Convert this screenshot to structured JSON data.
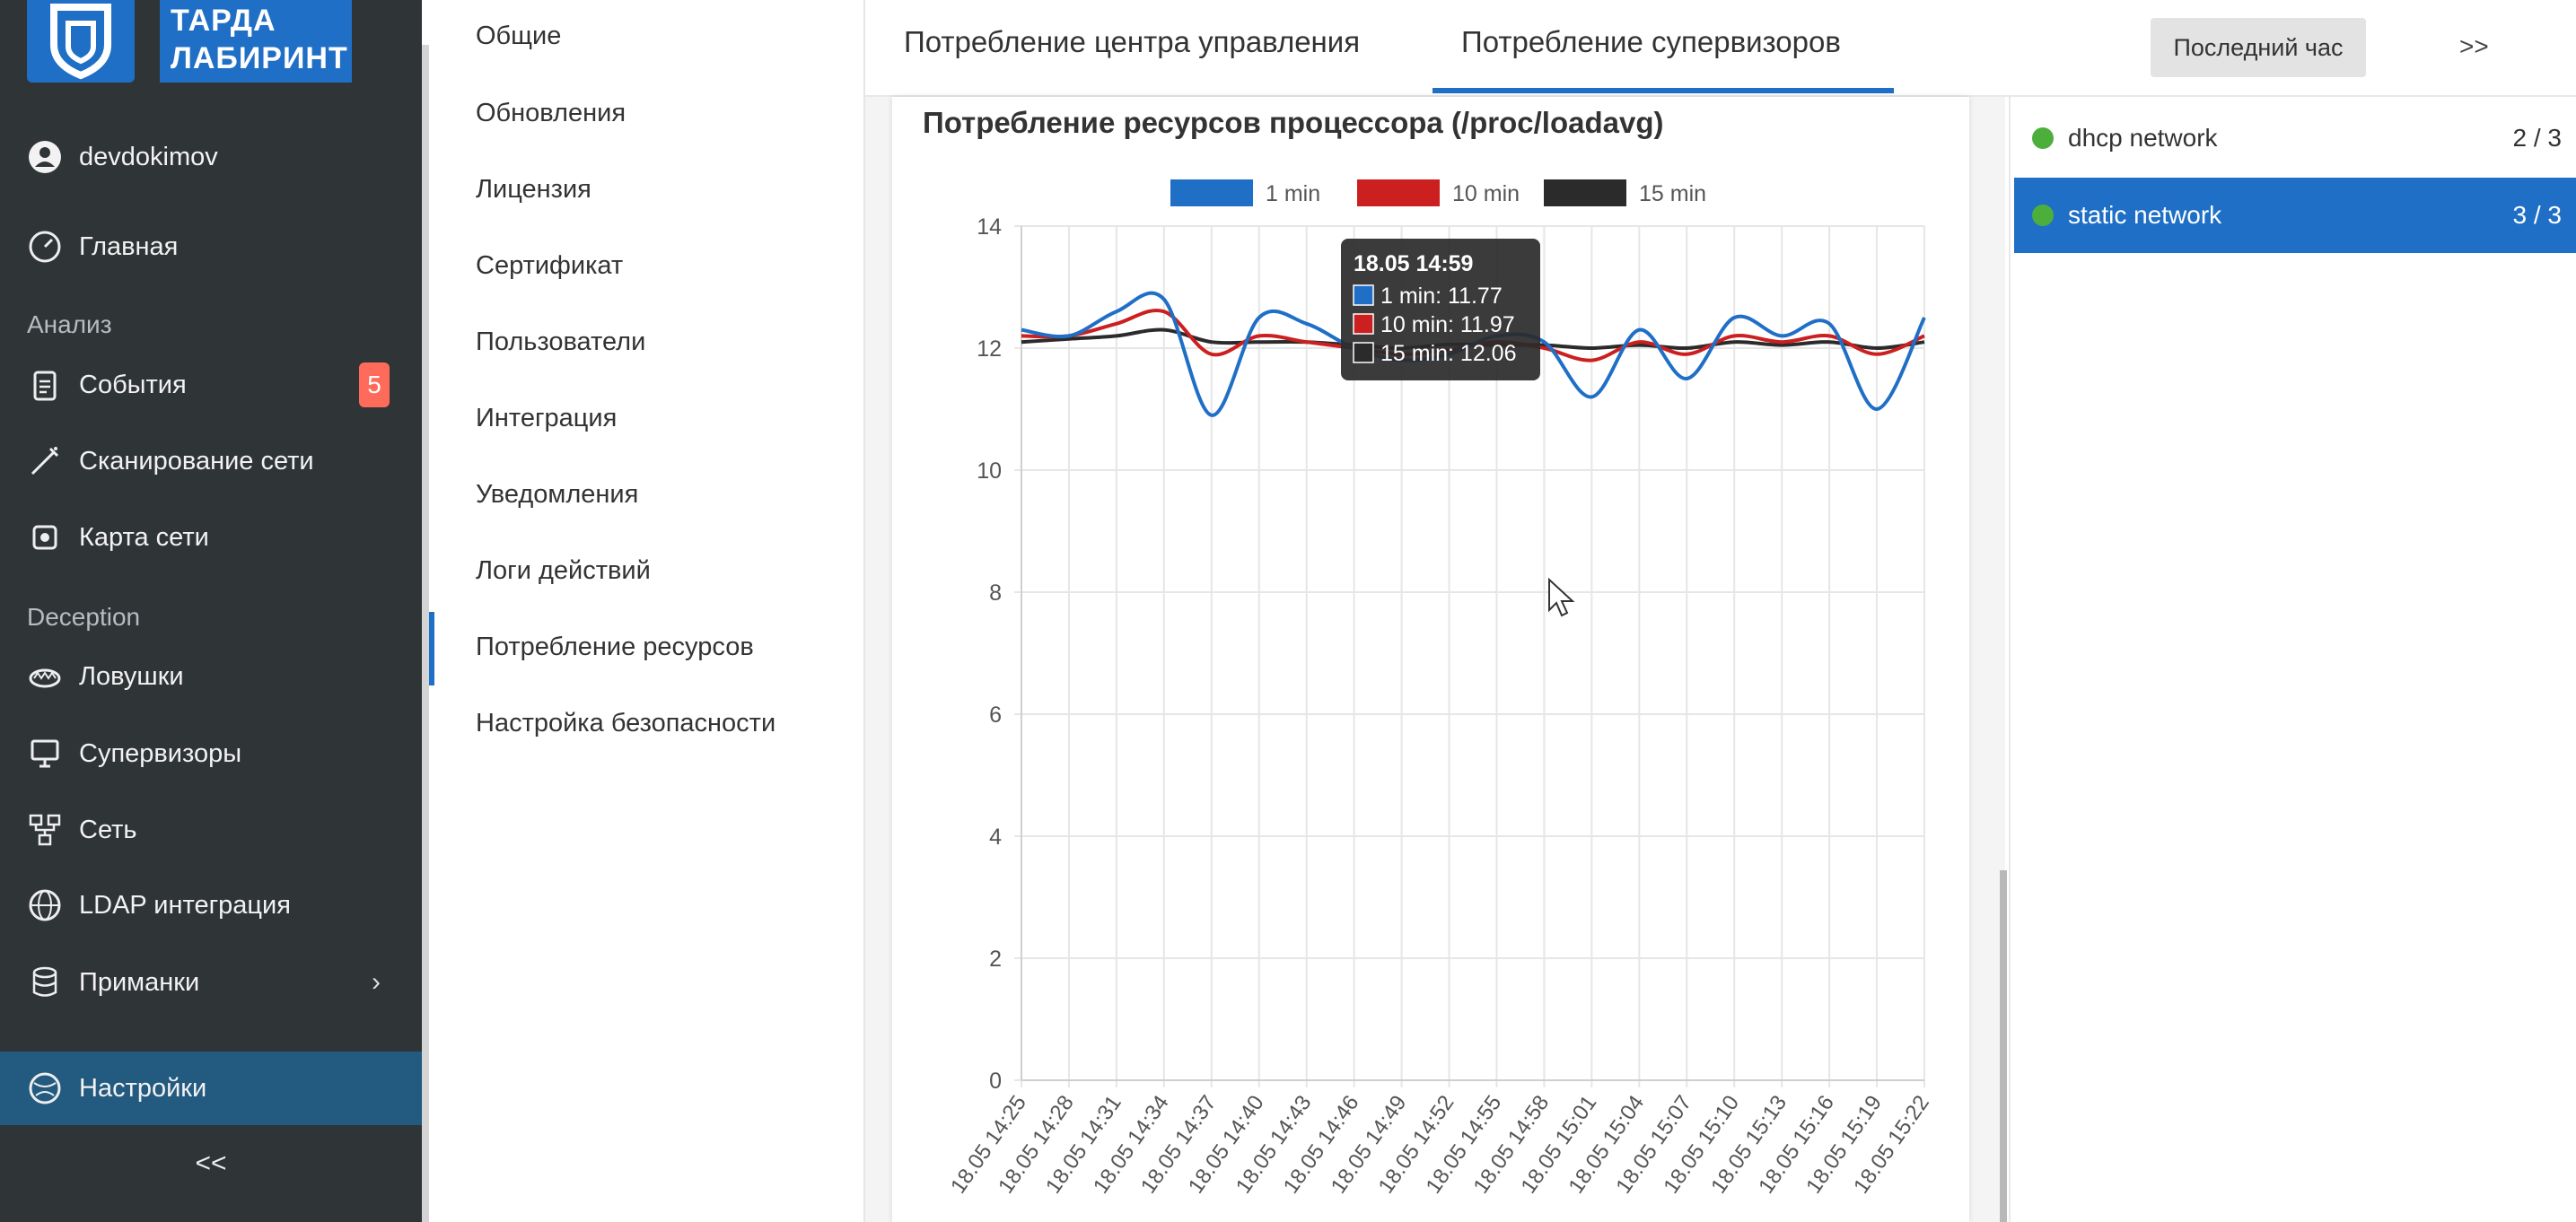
{
  "app": {
    "logo_text": "ТАРДА ЛАБИРИНТ",
    "user": "devdokimov"
  },
  "sidebar": {
    "home": "Главная",
    "section_analysis": "Анализ",
    "events": "События",
    "events_badge": "5",
    "scan": "Сканирование сети",
    "map": "Карта сети",
    "section_deception": "Deception",
    "traps": "Ловушки",
    "supervisors": "Супервизоры",
    "network": "Сеть",
    "ldap": "LDAP интеграция",
    "baits": "Приманки",
    "settings": "Настройки",
    "collapse": "<<"
  },
  "settings_menu": [
    "Общие",
    "Обновления",
    "Лицензия",
    "Сертификат",
    "Пользователи",
    "Интеграция",
    "Уведомления",
    "Логи действий",
    "Потребление ресурсов",
    "Настройка безопасности"
  ],
  "tabs": {
    "center": "Потребление центра управления",
    "supervisors": "Потребление супервизоров",
    "period": "Последний час",
    "more": ">>"
  },
  "supervisors_list": [
    {
      "name": "dhcp network",
      "count": "2 / 3"
    },
    {
      "name": "static network",
      "count": "3 / 3"
    }
  ],
  "colors": {
    "accent": "#1f6fc6",
    "series_1": "#1f6fc6",
    "series_10": "#cc1f1f",
    "series_15": "#2b2b2b",
    "ok": "#4caf3c",
    "badge": "#ff6b5a"
  },
  "chart_data": {
    "type": "line",
    "title": "Потребление ресурсов процессора (/proc/loadavg)",
    "ylim": [
      0,
      14
    ],
    "yticks": [
      0,
      2,
      4,
      6,
      8,
      10,
      12,
      14
    ],
    "x": [
      "18.05 14:25",
      "18.05 14:28",
      "18.05 14:31",
      "18.05 14:34",
      "18.05 14:37",
      "18.05 14:40",
      "18.05 14:43",
      "18.05 14:46",
      "18.05 14:49",
      "18.05 14:52",
      "18.05 14:55",
      "18.05 14:58",
      "18.05 15:01",
      "18.05 15:04",
      "18.05 15:07",
      "18.05 15:10",
      "18.05 15:13",
      "18.05 15:16",
      "18.05 15:19",
      "18.05 15:22"
    ],
    "grid": true,
    "legend": "top",
    "series": [
      {
        "name": "1 min",
        "values": [
          12.3,
          12.2,
          12.6,
          12.8,
          10.9,
          12.5,
          12.4,
          12.0,
          11.8,
          11.9,
          12.2,
          12.1,
          11.2,
          12.3,
          11.5,
          12.5,
          12.2,
          12.4,
          11.0,
          12.5
        ]
      },
      {
        "name": "10 min",
        "values": [
          12.2,
          12.2,
          12.4,
          12.6,
          11.9,
          12.2,
          12.1,
          12.0,
          11.9,
          11.97,
          12.1,
          12.0,
          11.8,
          12.1,
          11.9,
          12.2,
          12.1,
          12.2,
          11.9,
          12.2
        ]
      },
      {
        "name": "15 min",
        "values": [
          12.1,
          12.15,
          12.2,
          12.3,
          12.1,
          12.1,
          12.1,
          12.05,
          12.0,
          12.06,
          12.05,
          12.05,
          12.0,
          12.05,
          12.0,
          12.1,
          12.05,
          12.1,
          12.0,
          12.1
        ]
      }
    ],
    "tooltip": {
      "title": "18.05 14:59",
      "lines": [
        "1 min: 11.77",
        "10 min: 11.97",
        "15 min: 12.06"
      ]
    }
  }
}
